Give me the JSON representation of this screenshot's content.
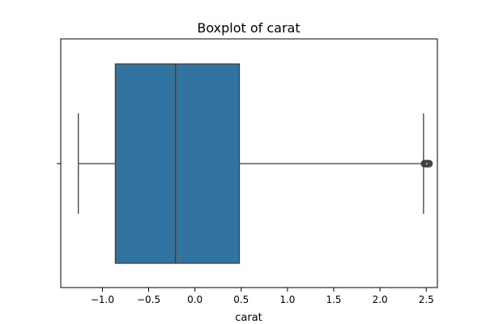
{
  "chart_data": {
    "type": "box",
    "title": "Boxplot of carat",
    "xlabel": "carat",
    "ylabel": "",
    "xlim": [
      -1.45,
      2.62
    ],
    "xticks": [
      -1.0,
      -0.5,
      0.0,
      0.5,
      1.0,
      1.5,
      2.0,
      2.5
    ],
    "xtick_labels": [
      "−1.0",
      "−0.5",
      "0.0",
      "0.5",
      "1.0",
      "1.5",
      "2.0",
      "2.5"
    ],
    "orientation": "horizontal",
    "box": {
      "whisker_low": -1.26,
      "q1": -0.86,
      "median": -0.21,
      "q3": 0.48,
      "whisker_high": 2.47
    },
    "outliers": [
      2.48,
      2.49,
      2.5,
      2.51,
      2.52,
      2.53
    ],
    "box_color": "#3274a1",
    "line_color": "#3d3d3d",
    "grid": false
  }
}
